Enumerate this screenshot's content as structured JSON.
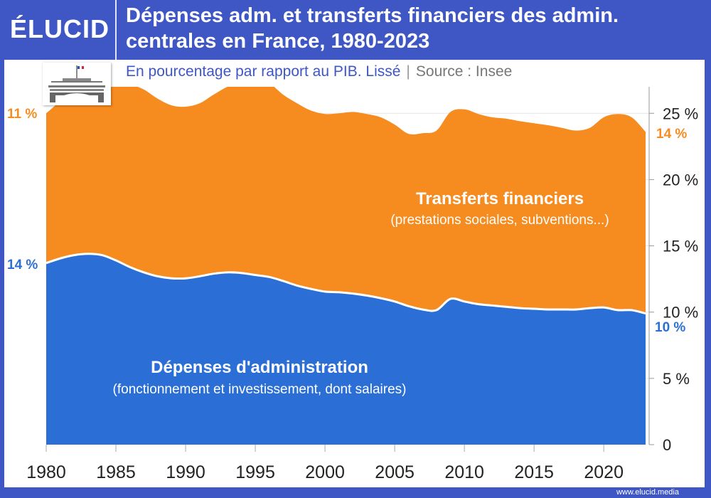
{
  "brand": {
    "logo": "ÉLUCID",
    "footer": "www.elucid.media"
  },
  "header": {
    "title": "Dépenses adm. et transferts financiers des admin. centrales en France, 1980-2023",
    "subtitle": "En pourcentage par rapport au PIB. Lissé",
    "separator": "|",
    "source": "Source : Insee"
  },
  "colors": {
    "frame": "#3f57c4",
    "admin": "#2b6fd6",
    "transferts": "#f68b1f"
  },
  "chart_data": {
    "type": "area",
    "stacked": true,
    "x": [
      1980,
      1981,
      1982,
      1983,
      1984,
      1985,
      1986,
      1987,
      1988,
      1989,
      1990,
      1991,
      1992,
      1993,
      1994,
      1995,
      1996,
      1997,
      1998,
      1999,
      2000,
      2001,
      2002,
      2003,
      2004,
      2005,
      2006,
      2007,
      2008,
      2009,
      2010,
      2011,
      2012,
      2013,
      2014,
      2015,
      2016,
      2017,
      2018,
      2019,
      2020,
      2021,
      2022,
      2023
    ],
    "ylim": [
      0,
      27
    ],
    "y_ticks": [
      0,
      5,
      10,
      15,
      20,
      25
    ],
    "y_tick_labels": [
      "0",
      "5 %",
      "10 %",
      "15 %",
      "20 %",
      "25 %"
    ],
    "x_ticks": [
      1980,
      1985,
      1990,
      1995,
      2000,
      2005,
      2010,
      2015,
      2020
    ],
    "x_tick_labels": [
      "1980",
      "1985",
      "1990",
      "1995",
      "2000",
      "2005",
      "2010",
      "2015",
      "2020"
    ],
    "grid": true,
    "series": [
      {
        "name": "Dépenses d'administration",
        "note": "(fonctionnement et investissement, dont salaires)",
        "color": "#2b6fd6",
        "values": [
          13.7,
          14.05,
          14.3,
          14.4,
          14.3,
          13.9,
          13.4,
          13.0,
          12.7,
          12.55,
          12.55,
          12.7,
          12.9,
          13.0,
          12.95,
          12.8,
          12.65,
          12.35,
          12.0,
          11.75,
          11.55,
          11.5,
          11.4,
          11.25,
          11.05,
          10.8,
          10.45,
          10.2,
          10.15,
          11.0,
          10.8,
          10.6,
          10.5,
          10.4,
          10.3,
          10.25,
          10.2,
          10.2,
          10.2,
          10.3,
          10.35,
          10.15,
          10.15,
          9.9
        ],
        "start_label": "14 %",
        "end_label": "10 %"
      },
      {
        "name": "Transferts financiers",
        "note": "(prestations sociales, subventions...)",
        "color": "#f68b1f",
        "values": [
          11.3,
          11.85,
          12.4,
          13.1,
          13.2,
          13.6,
          13.8,
          13.8,
          13.4,
          13.05,
          12.95,
          13.05,
          13.5,
          14.0,
          14.35,
          14.5,
          14.6,
          14.05,
          13.75,
          13.45,
          13.4,
          13.5,
          13.7,
          13.7,
          13.65,
          13.35,
          13.0,
          13.3,
          13.55,
          14.1,
          14.5,
          14.35,
          14.2,
          14.2,
          14.1,
          14.0,
          13.9,
          13.7,
          13.5,
          13.6,
          14.35,
          14.8,
          14.55,
          13.7
        ],
        "start_label": "11 %",
        "end_label": "14 %"
      }
    ]
  }
}
